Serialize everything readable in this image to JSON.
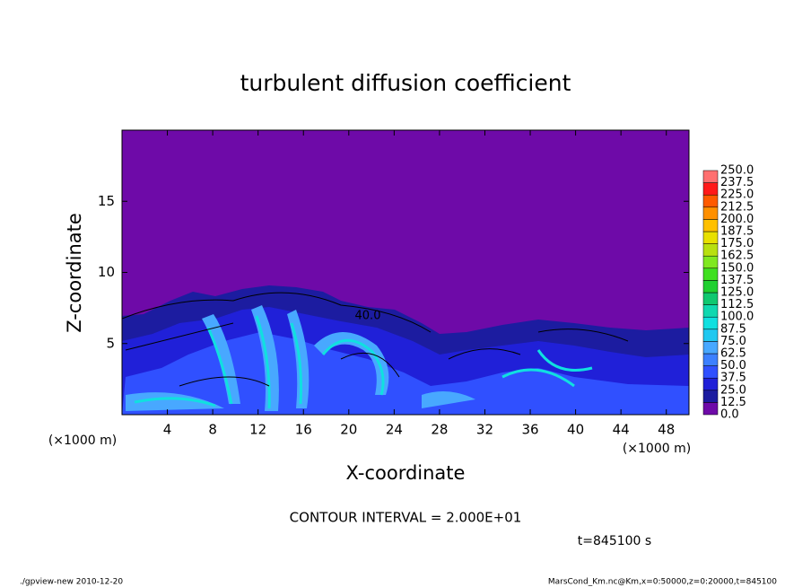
{
  "chart_data": {
    "type": "contour",
    "title": "turbulent diffusion coefficient",
    "x_label": "X-coordinate",
    "y_label": "Z-coordinate",
    "x_unit": "(×1000 m)",
    "x_unit_right": "(×1000 m)",
    "xlim": [
      0,
      50
    ],
    "xticks": [
      4,
      8,
      12,
      16,
      20,
      24,
      28,
      32,
      36,
      40,
      44,
      48
    ],
    "ylim": [
      0,
      20
    ],
    "yticks": [
      5,
      10,
      15
    ],
    "contour_label": "40.0",
    "contour_interval": "CONTOUR INTERVAL = 2.000E+01",
    "time_label": "t=845100 s",
    "footer_left": "./gpview-new   2010-12-20",
    "footer_right": "MarsCond_Km.nc@Km,x=0:50000,z=0:20000,t=845100",
    "colorbar": {
      "levels": [
        {
          "value": 0,
          "label": "0.0"
        },
        12.5,
        {
          "value": 25,
          "label": "25.0"
        },
        37.5,
        {
          "value": 50,
          "label": "50.0"
        },
        62.5,
        {
          "value": 75,
          "label": "75.0"
        },
        87.5,
        {
          "value": 100,
          "label": "100.0"
        },
        112.5,
        {
          "value": 125,
          "label": "125.0"
        },
        137.5,
        {
          "value": 150,
          "label": "150.0"
        },
        162.5,
        {
          "value": 175,
          "label": "175.0"
        },
        187.5,
        {
          "value": 200,
          "label": "200.0"
        },
        212.5,
        {
          "value": 225,
          "label": "225.0"
        },
        237.5,
        {
          "value": 250,
          "label": "250.0"
        }
      ],
      "colors": [
        "#6e0aa8",
        "#1c1ca0",
        "#2020d8",
        "#3050ff",
        "#3c80ff",
        "#48a8ff",
        "#20c8f0",
        "#10e0e0",
        "#10d8b0",
        "#10c870",
        "#20d030",
        "#40e020",
        "#80e820",
        "#b8e010",
        "#e8e000",
        "#ffc000",
        "#ff9000",
        "#ff5a00",
        "#ff1a1a",
        "#ff7070"
      ]
    }
  }
}
